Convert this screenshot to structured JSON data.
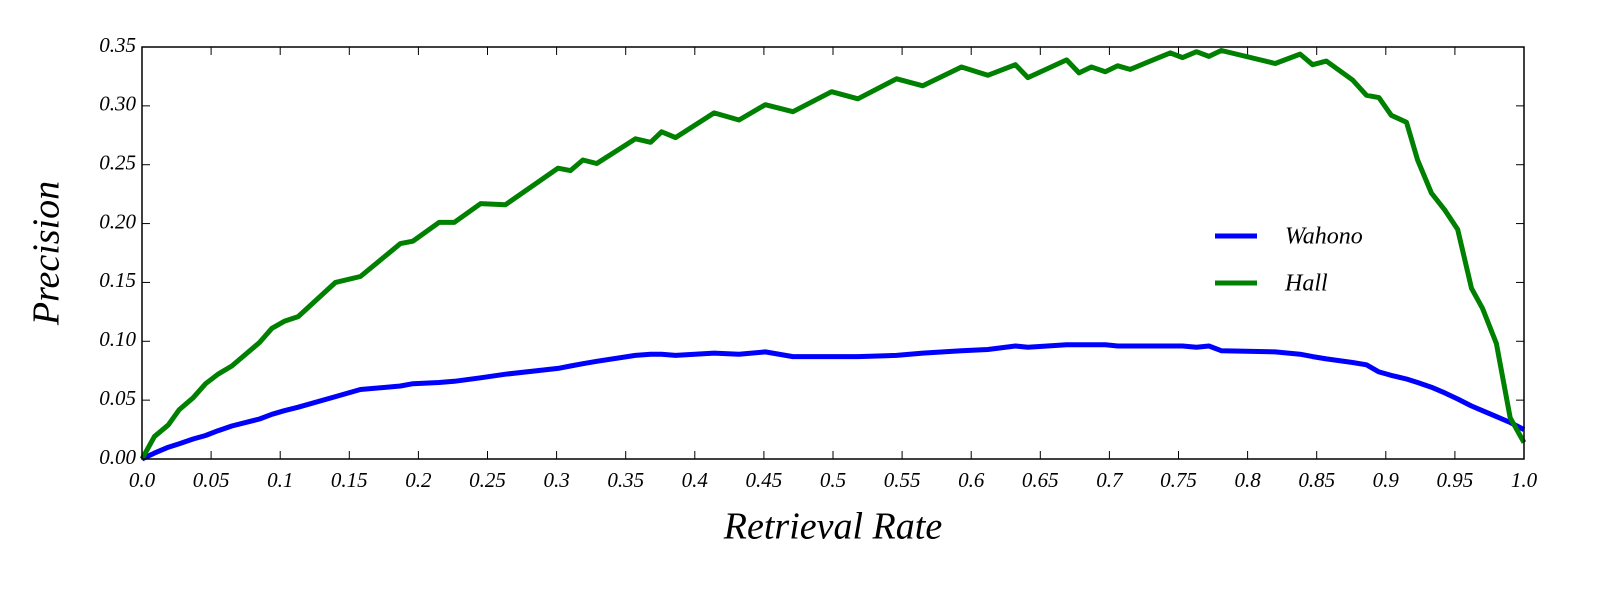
{
  "chart_data": {
    "type": "line",
    "xlabel": "Retrieval Rate",
    "ylabel": "Precision",
    "x": [
      0,
      0.009,
      0.019,
      0.027,
      0.037,
      0.046,
      0.055,
      0.065,
      0.085,
      0.094,
      0.103,
      0.113,
      0.14,
      0.158,
      0.187,
      0.196,
      0.215,
      0.226,
      0.245,
      0.263,
      0.301,
      0.31,
      0.319,
      0.329,
      0.357,
      0.368,
      0.376,
      0.386,
      0.414,
      0.432,
      0.451,
      0.471,
      0.499,
      0.518,
      0.546,
      0.565,
      0.593,
      0.612,
      0.632,
      0.641,
      0.669,
      0.678,
      0.687,
      0.697,
      0.706,
      0.715,
      0.744,
      0.753,
      0.763,
      0.772,
      0.781,
      0.82,
      0.838,
      0.847,
      0.857,
      0.876,
      0.886,
      0.895,
      0.904,
      0.915,
      0.923,
      0.933,
      0.943,
      0.952,
      0.962,
      0.97,
      0.98,
      0.99,
      1.0
    ],
    "series": [
      {
        "name": "Wahono",
        "color": "#0000ff",
        "values": [
          0,
          0.005,
          0.01,
          0.013,
          0.017,
          0.02,
          0.024,
          0.028,
          0.034,
          0.038,
          0.041,
          0.044,
          0.053,
          0.059,
          0.062,
          0.064,
          0.065,
          0.066,
          0.069,
          0.072,
          0.077,
          0.079,
          0.081,
          0.083,
          0.088,
          0.089,
          0.089,
          0.088,
          0.09,
          0.089,
          0.091,
          0.087,
          0.087,
          0.087,
          0.088,
          0.09,
          0.092,
          0.093,
          0.096,
          0.095,
          0.097,
          0.097,
          0.097,
          0.097,
          0.096,
          0.096,
          0.096,
          0.096,
          0.095,
          0.096,
          0.092,
          0.091,
          0.089,
          0.087,
          0.085,
          0.082,
          0.08,
          0.074,
          0.071,
          0.068,
          0.065,
          0.061,
          0.056,
          0.051,
          0.045,
          0.041,
          0.036,
          0.031,
          0.025
        ]
      },
      {
        "name": "Hall",
        "color": "#008000",
        "values": [
          0,
          0.019,
          0.029,
          0.042,
          0.052,
          0.064,
          0.072,
          0.079,
          0.099,
          0.111,
          0.117,
          0.121,
          0.15,
          0.155,
          0.183,
          0.185,
          0.201,
          0.201,
          0.217,
          0.216,
          0.247,
          0.245,
          0.254,
          0.251,
          0.272,
          0.269,
          0.278,
          0.273,
          0.294,
          0.288,
          0.301,
          0.295,
          0.312,
          0.306,
          0.323,
          0.317,
          0.333,
          0.326,
          0.335,
          0.324,
          0.339,
          0.328,
          0.333,
          0.329,
          0.334,
          0.331,
          0.345,
          0.341,
          0.346,
          0.342,
          0.347,
          0.336,
          0.344,
          0.335,
          0.338,
          0.322,
          0.309,
          0.307,
          0.292,
          0.286,
          0.254,
          0.226,
          0.211,
          0.195,
          0.145,
          0.128,
          0.098,
          0.035,
          0.014
        ]
      }
    ],
    "xlim": [
      0,
      1
    ],
    "xticks": [
      {
        "value": 0,
        "label": "0.0"
      },
      0.05,
      0.1,
      0.15,
      0.2,
      0.25,
      0.3,
      0.35,
      0.4,
      0.45,
      0.5,
      0.55,
      0.6,
      0.65,
      0.7,
      0.75,
      0.8,
      0.85,
      0.9,
      0.95,
      {
        "value": 1,
        "label": "1.0"
      }
    ],
    "ylim": [
      0,
      0.35
    ],
    "yticks": [
      {
        "value": 0,
        "label": "0.00"
      },
      0.05,
      {
        "value": 0.1,
        "label": "0.10"
      },
      0.15,
      {
        "value": 0.2,
        "label": "0.20"
      },
      0.25,
      {
        "value": 0.3,
        "label": "0.30"
      },
      0.35
    ],
    "grid": false,
    "legend": "center right"
  }
}
